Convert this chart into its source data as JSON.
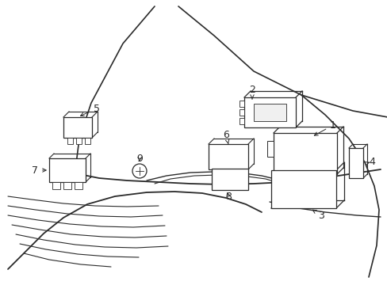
{
  "bg_color": "#ffffff",
  "lc": "#2a2a2a",
  "lw": 0.9,
  "fig_w": 4.89,
  "fig_h": 3.6,
  "dpi": 100
}
